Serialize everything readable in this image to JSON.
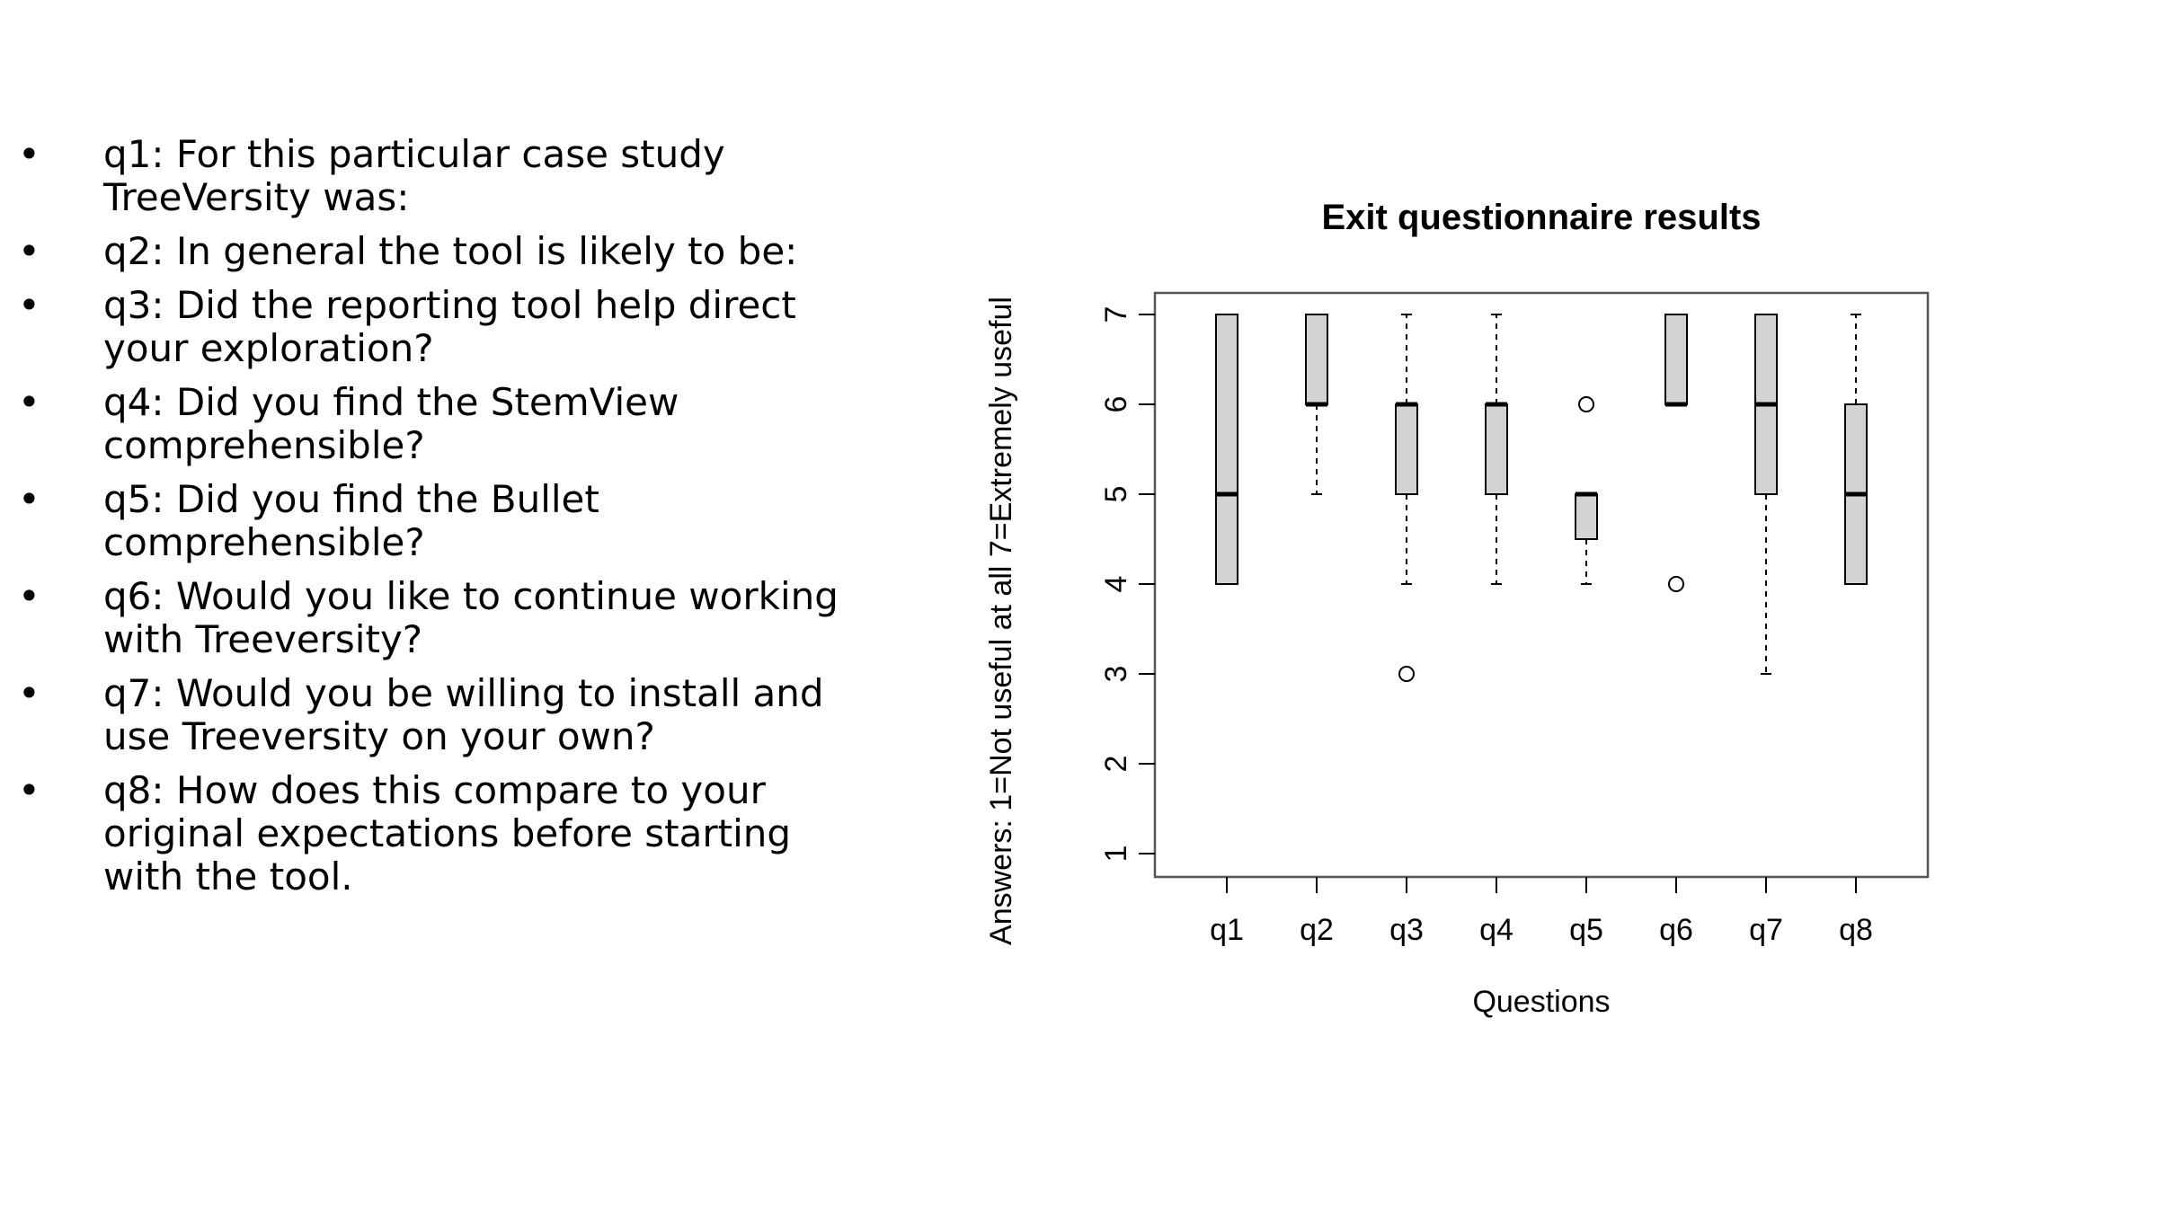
{
  "bullets": [
    {
      "text": "q1: For this particular case study TreeVersity was:"
    },
    {
      "text": "q2: In general the tool is likely to be:"
    },
    {
      "text": "q3: Did the reporting tool help direct your exploration?"
    },
    {
      "text": "q4: Did you find the StemView comprehensible?"
    },
    {
      "text": "q5: Did you find the Bullet comprehensible?"
    },
    {
      "text": "q6: Would you like to continue working with Treeversity?"
    },
    {
      "text": "q7: Would you be willing to install and use Treeversity on your own?"
    },
    {
      "text": "q8: How does this compare to your original expectations before starting with the tool."
    }
  ],
  "bullet_symbol": "•",
  "chart_data": {
    "type": "boxplot",
    "title": "Exit questionnaire results",
    "xlabel": "Questions",
    "ylabel": "Answers: 1=Not useful at all   7=Extremely useful",
    "ylim": [
      1,
      7
    ],
    "yticks": [
      1,
      2,
      3,
      4,
      5,
      6,
      7
    ],
    "categories": [
      "q1",
      "q2",
      "q3",
      "q4",
      "q5",
      "q6",
      "q7",
      "q8"
    ],
    "boxes": [
      {
        "category": "q1",
        "whisker_low": 4,
        "q1": 4,
        "median": 5,
        "q3": 7,
        "whisker_high": 7,
        "outliers": []
      },
      {
        "category": "q2",
        "whisker_low": 5,
        "q1": 6,
        "median": 6,
        "q3": 7,
        "whisker_high": 7,
        "outliers": []
      },
      {
        "category": "q3",
        "whisker_low": 4,
        "q1": 5,
        "median": 6,
        "q3": 6,
        "whisker_high": 7,
        "outliers": [
          3
        ]
      },
      {
        "category": "q4",
        "whisker_low": 4,
        "q1": 5,
        "median": 6,
        "q3": 6,
        "whisker_high": 7,
        "outliers": []
      },
      {
        "category": "q5",
        "whisker_low": 4,
        "q1": 4.5,
        "median": 5,
        "q3": 5,
        "whisker_high": 5,
        "outliers": [
          6
        ]
      },
      {
        "category": "q6",
        "whisker_low": 6,
        "q1": 6,
        "median": 6,
        "q3": 7,
        "whisker_high": 7,
        "outliers": [
          4
        ]
      },
      {
        "category": "q7",
        "whisker_low": 3,
        "q1": 5,
        "median": 6,
        "q3": 7,
        "whisker_high": 7,
        "outliers": []
      },
      {
        "category": "q8",
        "whisker_low": 4,
        "q1": 4,
        "median": 5,
        "q3": 6,
        "whisker_high": 7,
        "outliers": []
      }
    ],
    "colors": {
      "box_fill": "#d3d3d3",
      "stroke": "#000000",
      "frame": "#555555"
    },
    "grid": false,
    "legend": "none"
  }
}
